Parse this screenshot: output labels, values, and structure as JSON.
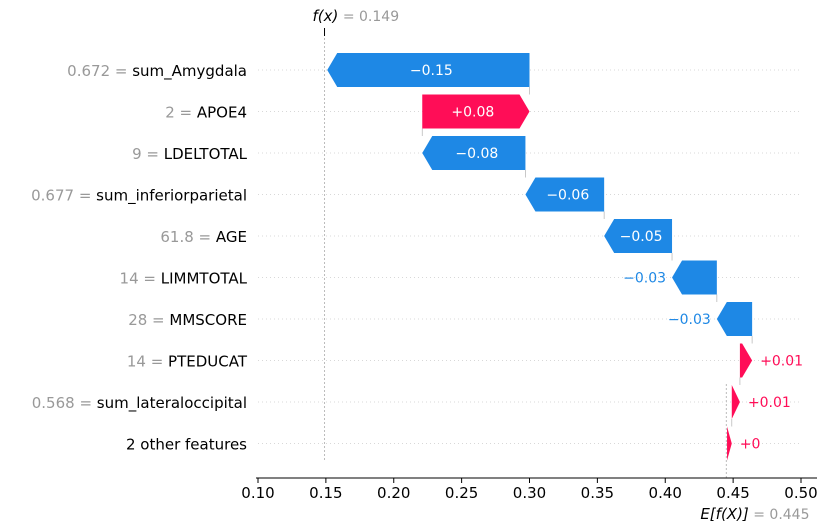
{
  "chart_data": {
    "type": "waterfall",
    "fx_label": "f(x)",
    "fx_value": "0.149",
    "efx_label": "E[f(X)]",
    "efx_value": "0.445",
    "base_value": 0.445,
    "output_value": 0.149,
    "xlim": [
      0.1,
      0.5
    ],
    "xticks": [
      {
        "value": 0.1,
        "label": "0.10"
      },
      {
        "value": 0.15,
        "label": "0.15"
      },
      {
        "value": 0.2,
        "label": "0.20"
      },
      {
        "value": 0.25,
        "label": "0.25"
      },
      {
        "value": 0.3,
        "label": "0.30"
      },
      {
        "value": 0.35,
        "label": "0.35"
      },
      {
        "value": 0.4,
        "label": "0.40"
      },
      {
        "value": 0.45,
        "label": "0.45"
      },
      {
        "value": 0.5,
        "label": "0.50"
      }
    ],
    "colors": {
      "positive": "#ff0d57",
      "negative": "#1e88e5",
      "muted": "#999999"
    },
    "features": [
      {
        "value": "0.672",
        "name": "sum_Amygdala",
        "start": 0.3,
        "end": 0.151,
        "label": "−0.15"
      },
      {
        "value": "2",
        "name": "APOE4",
        "start": 0.221,
        "end": 0.3,
        "label": "+0.08"
      },
      {
        "value": "9",
        "name": "LDELTOTAL",
        "start": 0.297,
        "end": 0.221,
        "label": "−0.08"
      },
      {
        "value": "0.677",
        "name": "sum_inferiorparietal",
        "start": 0.355,
        "end": 0.297,
        "label": "−0.06"
      },
      {
        "value": "61.8",
        "name": "AGE",
        "start": 0.405,
        "end": 0.355,
        "label": "−0.05"
      },
      {
        "value": "14",
        "name": "LIMMTOTAL",
        "start": 0.438,
        "end": 0.405,
        "label": "−0.03"
      },
      {
        "value": "28",
        "name": "MMSCORE",
        "start": 0.464,
        "end": 0.438,
        "label": "−0.03"
      },
      {
        "value": "14",
        "name": "PTEDUCAT",
        "start": 0.455,
        "end": 0.464,
        "label": "+0.01"
      },
      {
        "value": "0.568",
        "name": "sum_lateraloccipital",
        "start": 0.449,
        "end": 0.455,
        "label": "+0.01"
      },
      {
        "value": "",
        "name": "2 other features",
        "start": 0.4455,
        "end": 0.449,
        "label": "+0"
      }
    ]
  }
}
